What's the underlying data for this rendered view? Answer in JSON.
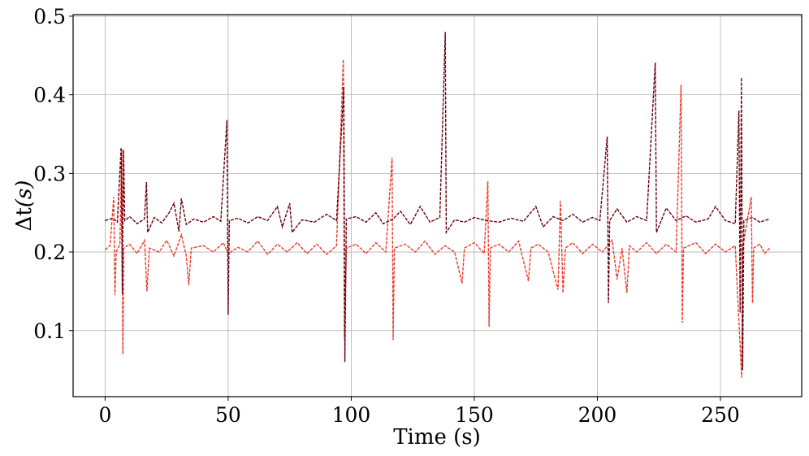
{
  "chart_data": {
    "type": "line",
    "title": "",
    "xlabel": "Time (s)",
    "ylabel_main": "Δt",
    "ylabel_suffix": "(s)",
    "xlim": [
      -13,
      283
    ],
    "ylim": [
      0.016,
      0.502
    ],
    "xticks": [
      0,
      50,
      100,
      150,
      200,
      250
    ],
    "xtick_labels": [
      "0",
      "50",
      "100",
      "150",
      "200",
      "250"
    ],
    "yticks": [
      0.1,
      0.2,
      0.3,
      0.4,
      0.5
    ],
    "ytick_labels": [
      "0.1",
      "0.2",
      "0.3",
      "0.4",
      "0.5"
    ],
    "grid": true,
    "legend": "none",
    "series": [
      {
        "name": "series-red",
        "color": "#ef3b2c",
        "dashed": true,
        "points": [
          [
            0,
            0.203
          ],
          [
            2,
            0.208
          ],
          [
            3.5,
            0.27
          ],
          [
            4,
            0.145
          ],
          [
            4.5,
            0.2
          ],
          [
            6,
            0.21
          ],
          [
            6.8,
            0.33
          ],
          [
            7.2,
            0.07
          ],
          [
            7.6,
            0.205
          ],
          [
            10,
            0.21
          ],
          [
            13,
            0.198
          ],
          [
            16,
            0.215
          ],
          [
            17,
            0.15
          ],
          [
            18,
            0.205
          ],
          [
            22,
            0.2
          ],
          [
            25,
            0.215
          ],
          [
            28,
            0.195
          ],
          [
            31,
            0.222
          ],
          [
            33,
            0.195
          ],
          [
            34,
            0.158
          ],
          [
            35,
            0.205
          ],
          [
            40,
            0.208
          ],
          [
            44,
            0.2
          ],
          [
            48,
            0.212
          ],
          [
            50,
            0.198
          ],
          [
            54,
            0.206
          ],
          [
            58,
            0.2
          ],
          [
            62,
            0.214
          ],
          [
            66,
            0.197
          ],
          [
            70,
            0.21
          ],
          [
            74,
            0.2
          ],
          [
            78,
            0.212
          ],
          [
            82,
            0.198
          ],
          [
            86,
            0.21
          ],
          [
            90,
            0.197
          ],
          [
            94,
            0.208
          ],
          [
            96.8,
            0.445
          ],
          [
            97.2,
            0.09
          ],
          [
            98,
            0.205
          ],
          [
            102,
            0.21
          ],
          [
            106,
            0.198
          ],
          [
            110,
            0.212
          ],
          [
            114,
            0.2
          ],
          [
            116.6,
            0.32
          ],
          [
            117,
            0.088
          ],
          [
            117.5,
            0.205
          ],
          [
            122,
            0.21
          ],
          [
            126,
            0.2
          ],
          [
            130,
            0.214
          ],
          [
            134,
            0.197
          ],
          [
            138,
            0.208
          ],
          [
            142,
            0.2
          ],
          [
            145,
            0.16
          ],
          [
            146,
            0.205
          ],
          [
            150,
            0.212
          ],
          [
            154,
            0.198
          ],
          [
            155.5,
            0.29
          ],
          [
            156,
            0.105
          ],
          [
            156.5,
            0.205
          ],
          [
            160,
            0.21
          ],
          [
            164,
            0.2
          ],
          [
            168,
            0.214
          ],
          [
            172,
            0.163
          ],
          [
            173,
            0.205
          ],
          [
            176,
            0.21
          ],
          [
            180,
            0.2
          ],
          [
            184,
            0.152
          ],
          [
            185,
            0.265
          ],
          [
            186,
            0.148
          ],
          [
            187,
            0.205
          ],
          [
            190,
            0.212
          ],
          [
            194,
            0.198
          ],
          [
            198,
            0.21
          ],
          [
            202,
            0.2
          ],
          [
            206,
            0.215
          ],
          [
            208,
            0.165
          ],
          [
            210,
            0.205
          ],
          [
            212,
            0.148
          ],
          [
            213,
            0.208
          ],
          [
            216,
            0.2
          ],
          [
            220,
            0.212
          ],
          [
            224,
            0.198
          ],
          [
            228,
            0.21
          ],
          [
            232,
            0.2
          ],
          [
            234,
            0.413
          ],
          [
            234.5,
            0.11
          ],
          [
            235,
            0.205
          ],
          [
            240,
            0.212
          ],
          [
            244,
            0.198
          ],
          [
            248,
            0.21
          ],
          [
            252,
            0.2
          ],
          [
            256,
            0.208
          ],
          [
            258.6,
            0.04
          ],
          [
            259,
            0.205
          ],
          [
            262.5,
            0.27
          ],
          [
            263,
            0.135
          ],
          [
            263.5,
            0.205
          ],
          [
            266,
            0.21
          ],
          [
            268,
            0.198
          ],
          [
            270,
            0.205
          ]
        ]
      },
      {
        "name": "series-dark",
        "color": "#67000d",
        "dashed": true,
        "points": [
          [
            0,
            0.24
          ],
          [
            3,
            0.243
          ],
          [
            5,
            0.238
          ],
          [
            6.5,
            0.333
          ],
          [
            7,
            0.147
          ],
          [
            7.5,
            0.33
          ],
          [
            8,
            0.24
          ],
          [
            10,
            0.245
          ],
          [
            13,
            0.236
          ],
          [
            16,
            0.242
          ],
          [
            16.8,
            0.289
          ],
          [
            17.3,
            0.225
          ],
          [
            20,
            0.244
          ],
          [
            23,
            0.237
          ],
          [
            26,
            0.25
          ],
          [
            28,
            0.262
          ],
          [
            30,
            0.226
          ],
          [
            31,
            0.268
          ],
          [
            33,
            0.235
          ],
          [
            36,
            0.242
          ],
          [
            40,
            0.238
          ],
          [
            44,
            0.245
          ],
          [
            47,
            0.239
          ],
          [
            49.5,
            0.368
          ],
          [
            50,
            0.12
          ],
          [
            50.5,
            0.24
          ],
          [
            54,
            0.243
          ],
          [
            58,
            0.237
          ],
          [
            62,
            0.245
          ],
          [
            66,
            0.24
          ],
          [
            70,
            0.258
          ],
          [
            72,
            0.232
          ],
          [
            75,
            0.262
          ],
          [
            76,
            0.225
          ],
          [
            80,
            0.241
          ],
          [
            85,
            0.238
          ],
          [
            90,
            0.248
          ],
          [
            94,
            0.24
          ],
          [
            97,
            0.41
          ],
          [
            97.4,
            0.06
          ],
          [
            98,
            0.242
          ],
          [
            102,
            0.245
          ],
          [
            106,
            0.238
          ],
          [
            110,
            0.25
          ],
          [
            113,
            0.236
          ],
          [
            117,
            0.242
          ],
          [
            120,
            0.252
          ],
          [
            124,
            0.235
          ],
          [
            128,
            0.258
          ],
          [
            132,
            0.238
          ],
          [
            136,
            0.244
          ],
          [
            138.2,
            0.48
          ],
          [
            138.6,
            0.225
          ],
          [
            142,
            0.241
          ],
          [
            146,
            0.238
          ],
          [
            150,
            0.244
          ],
          [
            155,
            0.24
          ],
          [
            160,
            0.238
          ],
          [
            165,
            0.243
          ],
          [
            170,
            0.239
          ],
          [
            175,
            0.258
          ],
          [
            178,
            0.232
          ],
          [
            182,
            0.245
          ],
          [
            186,
            0.24
          ],
          [
            190,
            0.248
          ],
          [
            194,
            0.238
          ],
          [
            198,
            0.244
          ],
          [
            201,
            0.24
          ],
          [
            204,
            0.347
          ],
          [
            204.5,
            0.135
          ],
          [
            205,
            0.24
          ],
          [
            208,
            0.255
          ],
          [
            212,
            0.238
          ],
          [
            216,
            0.245
          ],
          [
            220,
            0.24
          ],
          [
            223.5,
            0.441
          ],
          [
            224,
            0.225
          ],
          [
            228,
            0.256
          ],
          [
            232,
            0.24
          ],
          [
            236,
            0.246
          ],
          [
            240,
            0.238
          ],
          [
            245,
            0.242
          ],
          [
            248,
            0.258
          ],
          [
            252,
            0.24
          ],
          [
            256,
            0.236
          ],
          [
            257.5,
            0.38
          ],
          [
            258,
            0.123
          ],
          [
            258.5,
            0.422
          ],
          [
            259,
            0.05
          ],
          [
            259.5,
            0.24
          ],
          [
            263,
            0.244
          ],
          [
            266,
            0.238
          ],
          [
            270,
            0.242
          ]
        ]
      }
    ]
  }
}
